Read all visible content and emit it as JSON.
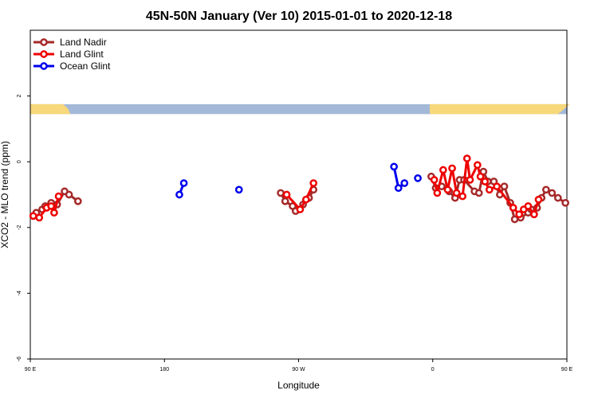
{
  "chart_data": {
    "type": "line",
    "title": "45N-50N January (Ver 10)   2015-01-01 to 2020-12-18",
    "xlabel": "Longitude",
    "ylabel": "XCO2 - MLO trend (ppm)",
    "xlim": [
      90,
      450
    ],
    "ylim": [
      -6,
      4
    ],
    "x_ticks": [
      {
        "value": 90,
        "label": "90 E"
      },
      {
        "value": 180,
        "label": "180"
      },
      {
        "value": 270,
        "label": "90 W"
      },
      {
        "value": 360,
        "label": "0"
      },
      {
        "value": 450,
        "label": "90 E"
      }
    ],
    "y_ticks": [
      {
        "value": -6,
        "label": "-6"
      },
      {
        "value": -4,
        "label": "-4"
      },
      {
        "value": -2,
        "label": "-2"
      },
      {
        "value": 0,
        "label": "0"
      },
      {
        "value": 2,
        "label": "2"
      }
    ],
    "grid": false,
    "legend_position": "top-left",
    "map_strip": {
      "y_range": [
        1.45,
        1.75
      ],
      "land_color": "#f7d87a",
      "ocean_color": "#a4b8d8"
    },
    "series": [
      {
        "name": "Land Nadir",
        "color": "#a52a2a",
        "segments": [
          [
            [
              94,
              -1.55
            ],
            [
              98,
              -1.45
            ],
            [
              100,
              -1.35
            ],
            [
              104,
              -1.25
            ],
            [
              108,
              -1.3
            ],
            [
              113,
              -0.9
            ],
            [
              116,
              -1
            ],
            [
              122,
              -1.2
            ]
          ],
          [
            [
              258,
              -0.95
            ],
            [
              261,
              -1.2
            ],
            [
              266,
              -1.35
            ],
            [
              268,
              -1.5
            ],
            [
              273,
              -1.3
            ],
            [
              277,
              -1.1
            ],
            [
              280,
              -0.85
            ]
          ],
          [
            [
              359,
              -0.45
            ],
            [
              362,
              -0.8
            ],
            [
              366,
              -0.75
            ],
            [
              371,
              -0.9
            ],
            [
              375,
              -1.1
            ],
            [
              378,
              -0.55
            ],
            [
              381,
              -0.55
            ],
            [
              388,
              -0.9
            ],
            [
              391,
              -0.95
            ],
            [
              394,
              -0.3
            ],
            [
              397,
              -0.6
            ],
            [
              401,
              -0.6
            ],
            [
              405,
              -1
            ],
            [
              408,
              -0.75
            ],
            [
              412,
              -1.25
            ],
            [
              415,
              -1.75
            ],
            [
              419,
              -1.7
            ],
            [
              424,
              -1.55
            ],
            [
              426,
              -1.45
            ],
            [
              430,
              -1.4
            ],
            [
              433,
              -1.1
            ],
            [
              436,
              -0.85
            ],
            [
              440,
              -0.95
            ],
            [
              444,
              -1.1
            ],
            [
              449,
              -1.25
            ]
          ]
        ]
      },
      {
        "name": "Land Glint",
        "color": "#ee0000",
        "segments": [
          [
            [
              92,
              -1.65
            ],
            [
              96,
              -1.7
            ],
            [
              101,
              -1.4
            ],
            [
              104,
              -1.35
            ],
            [
              106,
              -1.55
            ],
            [
              109,
              -1.05
            ]
          ],
          [
            [
              262,
              -1
            ],
            [
              271,
              -1.45
            ],
            [
              275,
              -1.15
            ],
            [
              280,
              -0.65
            ]
          ],
          [
            [
              361,
              -0.55
            ],
            [
              363,
              -0.95
            ],
            [
              367,
              -0.25
            ],
            [
              370,
              -0.85
            ],
            [
              373,
              -0.2
            ],
            [
              376,
              -0.95
            ],
            [
              380,
              -1.05
            ],
            [
              383,
              0.1
            ],
            [
              385,
              -0.55
            ],
            [
              390,
              -0.1
            ],
            [
              392,
              -0.45
            ],
            [
              395,
              -0.6
            ],
            [
              398,
              -0.85
            ],
            [
              403,
              -0.75
            ],
            [
              414,
              -1.4
            ],
            [
              418,
              -1.6
            ],
            [
              421,
              -1.45
            ],
            [
              424,
              -1.35
            ],
            [
              428,
              -1.6
            ],
            [
              431,
              -1.15
            ]
          ]
        ]
      },
      {
        "name": "Ocean Glint",
        "color": "#0000ee",
        "segments": [
          [
            [
              190,
              -1
            ],
            [
              193,
              -0.65
            ]
          ],
          [
            [
              230,
              -0.85
            ]
          ],
          [
            [
              334,
              -0.15
            ],
            [
              337,
              -0.8
            ],
            [
              341,
              -0.65
            ]
          ],
          [
            [
              350,
              -0.5
            ]
          ]
        ]
      }
    ]
  }
}
